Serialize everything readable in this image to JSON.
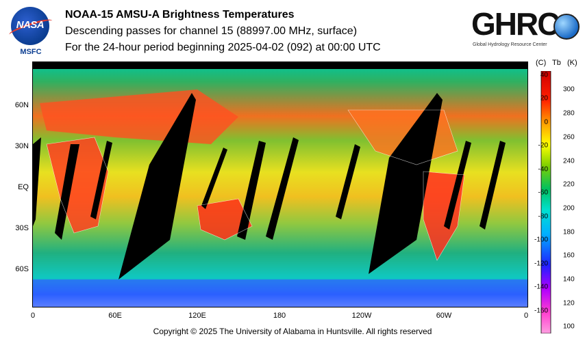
{
  "logos": {
    "left_text": "NASA",
    "left_sub": "MSFC",
    "right_text": "GHRC",
    "right_sub": "Global Hydrology Resource Center"
  },
  "header": {
    "title": "NOAA-15 AMSU-A Brightness Temperatures",
    "line2": "Descending passes for channel 15 (88997.00 MHz, surface)",
    "line3": "For the 24-hour period beginning 2025-04-02 (092) at 00:00 UTC"
  },
  "map": {
    "lat_labels": [
      "60N",
      "30N",
      "EQ",
      "30S",
      "60S"
    ],
    "lon_labels": [
      "0",
      "60E",
      "120E",
      "180",
      "120W",
      "60W",
      "0"
    ]
  },
  "colorbar": {
    "header_c": "(C)",
    "header_tb": "Tb",
    "header_k": "(K)",
    "celsius_ticks": [
      "40",
      "20",
      "0",
      "-20",
      "-40",
      "-60",
      "-80",
      "-100",
      "-120",
      "-140",
      "-160"
    ],
    "kelvin_ticks": [
      "300",
      "280",
      "260",
      "240",
      "220",
      "200",
      "180",
      "160",
      "140",
      "120",
      "100"
    ],
    "colors": [
      "#ff9fe0",
      "#ff3fd0",
      "#b000ff",
      "#2020ff",
      "#00b0ff",
      "#00e0d0",
      "#00c060",
      "#80d000",
      "#ffff00",
      "#ffa000",
      "#ff2000",
      "#d00000"
    ]
  },
  "footer": {
    "copyright": "Copyright © 2025 The University of Alabama in Huntsville.  All rights reserved"
  }
}
